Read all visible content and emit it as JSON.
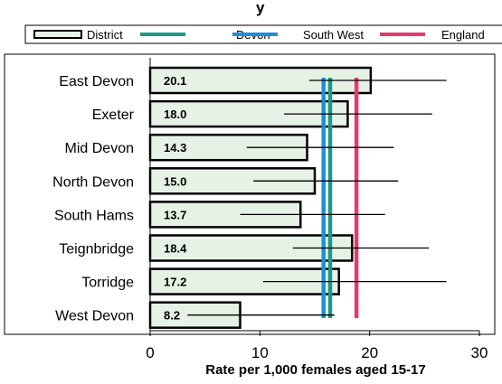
{
  "chart_data": {
    "type": "bar",
    "orientation": "horizontal",
    "title_fragment": "y",
    "categories": [
      "East Devon",
      "Exeter",
      "Mid Devon",
      "North Devon",
      "South Hams",
      "Teignbridge",
      "Torridge",
      "West Devon"
    ],
    "series": [
      {
        "name": "District",
        "values": [
          20.1,
          18.0,
          14.3,
          15.0,
          13.7,
          18.4,
          17.2,
          8.2
        ],
        "value_labels": [
          "20.1",
          "18.0",
          "14.3",
          "15.0",
          "13.7",
          "18.4",
          "17.2",
          "8.2"
        ],
        "ci_low": [
          14.5,
          12.2,
          8.8,
          9.4,
          8.2,
          13.0,
          10.3,
          3.4
        ],
        "ci_high": [
          27.0,
          25.7,
          22.2,
          22.6,
          21.4,
          25.4,
          27.0,
          16.8
        ]
      }
    ],
    "reference_lines": [
      {
        "name": "Devon",
        "value": 16.4,
        "color": "#1a9a8a"
      },
      {
        "name": "South West",
        "value": 15.8,
        "color": "#1e8fd6"
      },
      {
        "name": "England",
        "value": 18.8,
        "color": "#e83a6a"
      }
    ],
    "legend": [
      "District",
      "Devon",
      "South West",
      "England"
    ],
    "legend_position": "top",
    "xlabel": "Rate per 1,000 females aged 15-17",
    "xlim": [
      0,
      30
    ],
    "xticks": [
      0,
      10,
      20,
      30
    ],
    "xtick_labels": [
      "0",
      "10",
      "20",
      "30"
    ],
    "bar_fill": "#e6f2e6",
    "bar_edge": "#000000",
    "grid": false
  }
}
